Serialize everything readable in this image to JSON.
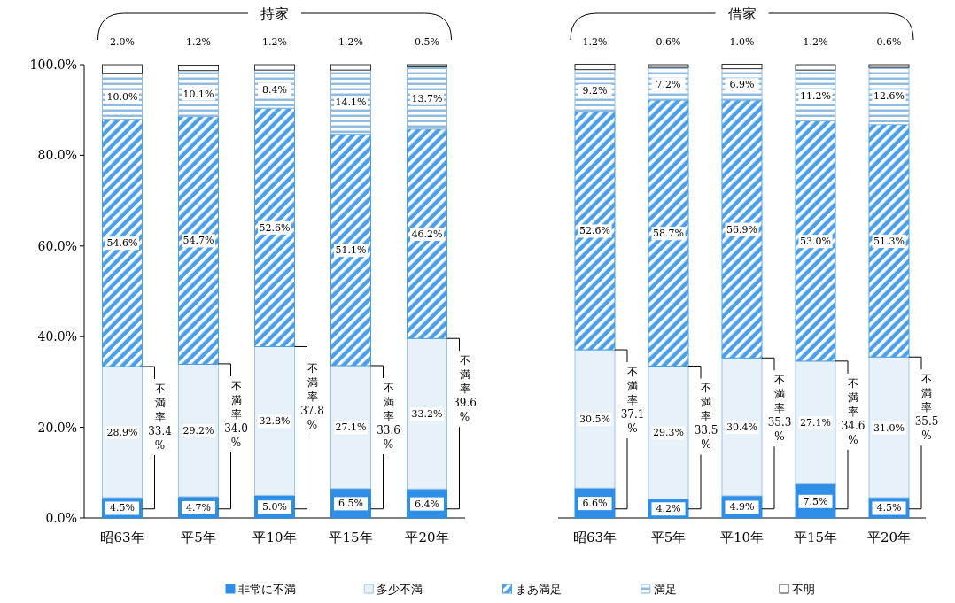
{
  "chart_data": [
    {
      "type": "bar",
      "title": "持家",
      "stacked": true,
      "legend": "bottom",
      "categories": [
        "昭63年",
        "平5年",
        "平10年",
        "平15年",
        "平20年"
      ],
      "ylim": [
        0,
        100
      ],
      "yticks": [
        {
          "value": 0,
          "label": "0.0%"
        },
        {
          "value": 20,
          "label": "20.0%"
        },
        {
          "value": 40,
          "label": "40.0%"
        },
        {
          "value": 60,
          "label": "60.0%"
        },
        {
          "value": 80,
          "label": "80.0%"
        },
        {
          "value": 100,
          "label": "100.0%"
        }
      ],
      "series": [
        {
          "name": "非常に不満",
          "color": "#2f8fe6",
          "values": [
            4.5,
            4.7,
            5.0,
            6.5,
            6.4
          ],
          "value_labels": [
            "4.5%",
            "4.7%",
            "5.0%",
            "6.5%",
            "6.4%"
          ]
        },
        {
          "name": "多少不満",
          "color": "#9ec6ea",
          "values": [
            28.9,
            29.2,
            32.8,
            27.1,
            33.2
          ],
          "value_labels": [
            "28.9%",
            "29.2%",
            "32.8%",
            "27.1%",
            "33.2%"
          ]
        },
        {
          "name": "まあ満足",
          "color": "#4a9fe8",
          "values": [
            54.6,
            54.7,
            52.6,
            51.1,
            46.2
          ],
          "value_labels": [
            "54.6%",
            "54.7%",
            "52.6%",
            "51.1%",
            "46.2%"
          ]
        },
        {
          "name": "満足",
          "color": "#8fbbe2",
          "values": [
            10.0,
            10.1,
            8.4,
            14.1,
            13.7
          ],
          "value_labels": [
            "10.0%",
            "10.1%",
            "8.4%",
            "14.1%",
            "13.7%"
          ]
        },
        {
          "name": "不明",
          "color": "#ffffff",
          "values": [
            2.0,
            1.2,
            1.2,
            1.2,
            0.5
          ],
          "value_labels": [
            "2.0%",
            "1.2%",
            "1.2%",
            "1.2%",
            "0.5%"
          ]
        }
      ],
      "annotations": [
        {
          "text": "不満率33.4%",
          "x": "昭63年",
          "y": 33.4
        },
        {
          "text": "不満率34.0%",
          "x": "平5年",
          "y": 34.0
        },
        {
          "text": "不満率37.8%",
          "x": "平10年",
          "y": 37.8
        },
        {
          "text": "不満率33.6%",
          "x": "平15年",
          "y": 33.6
        },
        {
          "text": "不満率39.6%",
          "x": "平20年",
          "y": 39.6
        }
      ]
    },
    {
      "type": "bar",
      "title": "借家",
      "stacked": true,
      "tick_labels": "x",
      "categories": [
        "昭63年",
        "平5年",
        "平10年",
        "平15年",
        "平20年"
      ],
      "ylim": [
        0,
        100
      ],
      "series": [
        {
          "color": "#2f8fe6",
          "values": [
            6.6,
            4.2,
            4.9,
            7.5,
            4.5
          ],
          "value_labels": [
            "6.6%",
            "4.2%",
            "4.9%",
            "7.5%",
            "4.5%"
          ]
        },
        {
          "color": "#9ec6ea",
          "values": [
            30.5,
            29.3,
            30.4,
            27.1,
            31.0
          ],
          "value_labels": [
            "30.5%",
            "29.3%",
            "30.4%",
            "27.1%",
            "31.0%"
          ]
        },
        {
          "color": "#4a9fe8",
          "values": [
            52.6,
            58.7,
            56.9,
            53.0,
            51.3
          ],
          "value_labels": [
            "52.6%",
            "58.7%",
            "56.9%",
            "53.0%",
            "51.3%"
          ]
        },
        {
          "color": "#8fbbe2",
          "values": [
            9.2,
            7.2,
            6.9,
            11.2,
            12.6
          ],
          "value_labels": [
            "9.2%",
            "7.2%",
            "6.9%",
            "11.2%",
            "12.6%"
          ]
        },
        {
          "color": "#ffffff",
          "values": [
            1.2,
            0.6,
            1.0,
            1.2,
            0.6
          ],
          "value_labels": [
            "1.2%",
            "0.6%",
            "1.0%",
            "1.2%",
            "0.6%"
          ]
        }
      ],
      "annotations": [
        {
          "text": "不満率37.1%",
          "x": "昭63年",
          "y": 37.1
        },
        {
          "text": "不満率33.5%",
          "x": "平5年",
          "y": 33.5
        },
        {
          "text": "不満率35.3%",
          "x": "平10年",
          "y": 35.3
        },
        {
          "text": "不満率34.6%",
          "x": "平15年",
          "y": 34.6
        },
        {
          "text": "不満率35.5%",
          "x": "平20年",
          "y": 35.5
        }
      ]
    }
  ]
}
